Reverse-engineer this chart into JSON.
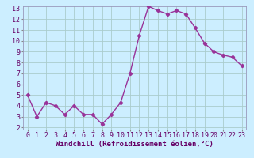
{
  "x": [
    0,
    1,
    2,
    3,
    4,
    5,
    6,
    7,
    8,
    9,
    10,
    11,
    12,
    13,
    14,
    15,
    16,
    17,
    18,
    19,
    20,
    21,
    22,
    23
  ],
  "y": [
    5.0,
    3.0,
    4.3,
    4.0,
    3.2,
    4.0,
    3.2,
    3.2,
    2.3,
    3.2,
    4.3,
    7.0,
    10.5,
    13.2,
    12.8,
    12.5,
    12.8,
    12.5,
    11.2,
    9.8,
    9.0,
    8.7,
    8.5,
    7.7
  ],
  "line_color": "#993399",
  "marker": "D",
  "marker_size": 2.2,
  "bg_color": "#cceeff",
  "grid_color": "#aacccc",
  "xlabel": "Windchill (Refroidissement éolien,°C)",
  "xlim": [
    -0.5,
    23.5
  ],
  "ylim": [
    1.8,
    13.2
  ],
  "xtick_labels": [
    "0",
    "1",
    "2",
    "3",
    "4",
    "5",
    "6",
    "7",
    "8",
    "9",
    "10",
    "11",
    "12",
    "13",
    "14",
    "15",
    "16",
    "17",
    "18",
    "19",
    "20",
    "21",
    "22",
    "23"
  ],
  "ytick_values": [
    2,
    3,
    4,
    5,
    6,
    7,
    8,
    9,
    10,
    11,
    12,
    13
  ],
  "xlabel_fontsize": 6.5,
  "tick_fontsize": 6.0,
  "line_width": 1.0
}
